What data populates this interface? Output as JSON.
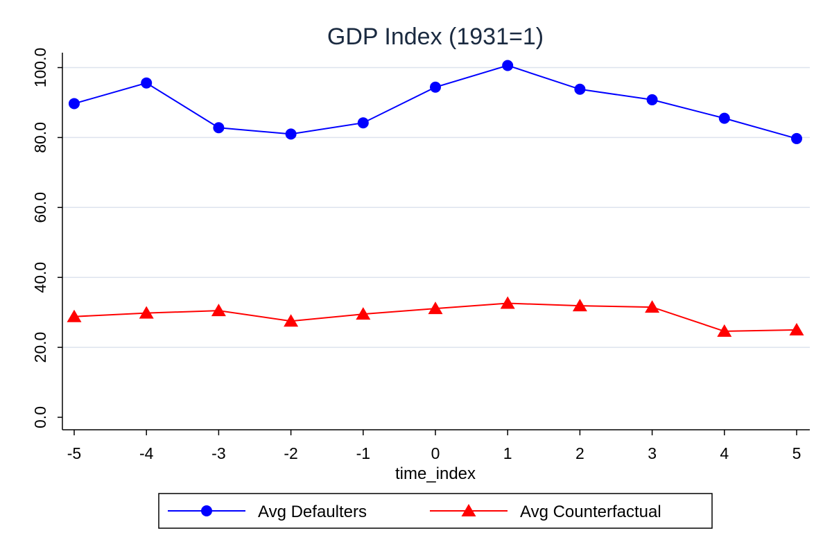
{
  "chart_data": {
    "type": "line",
    "title": "GDP Index (1931=1)",
    "xlabel": "time_index",
    "ylabel": "",
    "x": [
      -5,
      -4,
      -3,
      -2,
      -1,
      0,
      1,
      2,
      3,
      4,
      5
    ],
    "x_tick_labels": [
      "-5",
      "-4",
      "-3",
      "-2",
      "-1",
      "0",
      "1",
      "2",
      "3",
      "4",
      "5"
    ],
    "y_ticks": [
      0,
      20,
      40,
      60,
      80,
      100
    ],
    "y_tick_labels": [
      "0.0",
      "20.0",
      "40.0",
      "60.0",
      "80.0",
      "100.0"
    ],
    "xlim": [
      -5,
      5
    ],
    "ylim": [
      0,
      100
    ],
    "grid": "horizontal",
    "legend_position": "bottom",
    "series": [
      {
        "name": "Avg Defaulters",
        "color": "#0000ff",
        "marker": "circle",
        "values": [
          89.7,
          95.6,
          82.8,
          81.0,
          84.2,
          94.4,
          100.6,
          93.8,
          90.8,
          85.5,
          79.7
        ]
      },
      {
        "name": "Avg Counterfactual",
        "color": "#ff0000",
        "marker": "triangle",
        "values": [
          28.8,
          29.8,
          30.5,
          27.5,
          29.5,
          31.1,
          32.6,
          31.9,
          31.5,
          24.6,
          25.0
        ]
      }
    ]
  }
}
